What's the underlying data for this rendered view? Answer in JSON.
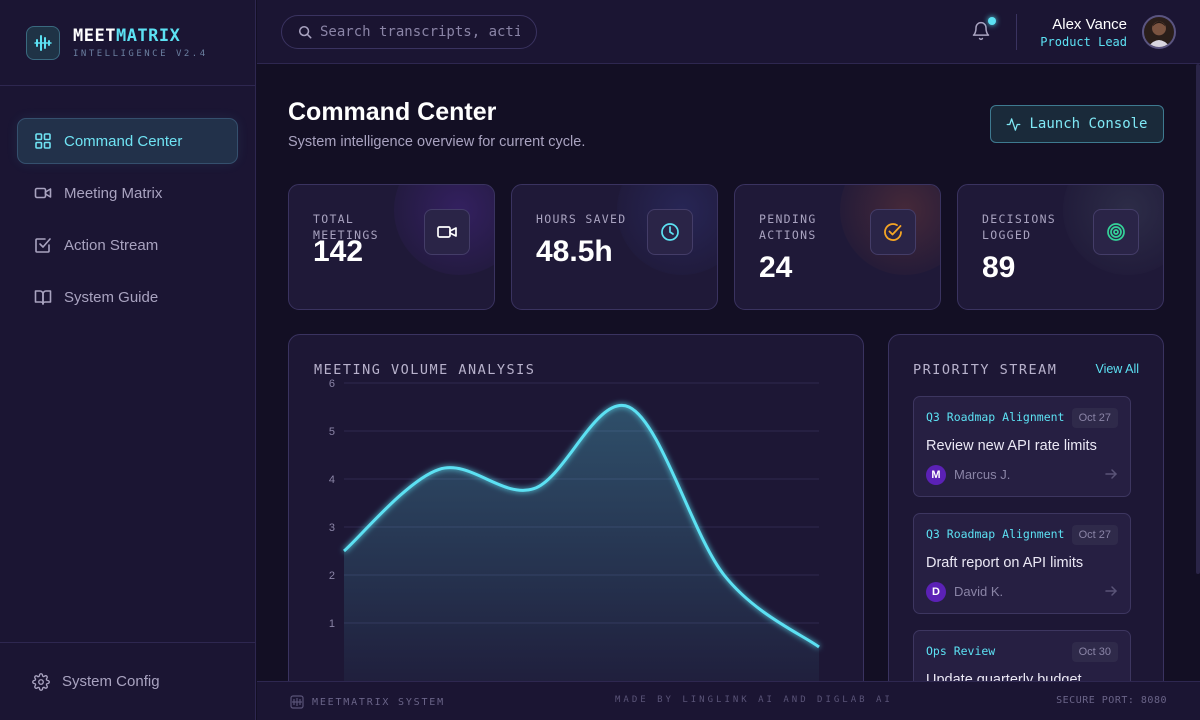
{
  "brand": {
    "name_part1": "MEET",
    "name_part2": "MATRIX",
    "subtitle": "INTELLIGENCE V2.4"
  },
  "sidebar": {
    "items": [
      {
        "label": "Command Center",
        "icon": "grid-icon",
        "active": true
      },
      {
        "label": "Meeting Matrix",
        "icon": "video-icon",
        "active": false
      },
      {
        "label": "Action Stream",
        "icon": "checkbox-icon",
        "active": false
      },
      {
        "label": "System Guide",
        "icon": "book-icon",
        "active": false
      }
    ],
    "footer_label": "System Config"
  },
  "topbar": {
    "search_placeholder": "Search transcripts, actions...",
    "user_name": "Alex Vance",
    "user_role": "Product Lead",
    "notification_dot": true
  },
  "header": {
    "title": "Command Center",
    "subtitle": "System intelligence overview for current cycle.",
    "launch_label": "Launch Console"
  },
  "stats": [
    {
      "label": "TOTAL MEETINGS",
      "value": "142",
      "icon": "video-icon",
      "accent": "#7c3aed"
    },
    {
      "label": "HOURS SAVED",
      "value": "48.5h",
      "icon": "clock-icon",
      "accent": "#5ce1f3"
    },
    {
      "label": "PENDING ACTIONS",
      "value": "24",
      "icon": "check-circle-icon",
      "accent": "#f5a524"
    },
    {
      "label": "DECISIONS LOGGED",
      "value": "89",
      "icon": "target-icon",
      "accent": "#34d399"
    }
  ],
  "chart_card": {
    "title": "MEETING VOLUME ANALYSIS"
  },
  "chart_data": {
    "type": "area",
    "title": "MEETING VOLUME ANALYSIS",
    "y_ticks": [
      1,
      2,
      3,
      4,
      5,
      6
    ],
    "x": [
      0,
      1,
      2,
      3,
      4,
      5
    ],
    "values": [
      2.5,
      4.2,
      3.8,
      5.5,
      2.0,
      0.5
    ],
    "color": "#5ce1f3",
    "grid": true
  },
  "priority": {
    "title": "PRIORITY STREAM",
    "view_all": "View All",
    "tasks": [
      {
        "tag": "Q3 Roadmap Alignment",
        "date": "Oct 27",
        "text": "Review new API rate limits",
        "initial": "M",
        "assignee": "Marcus J."
      },
      {
        "tag": "Q3 Roadmap Alignment",
        "date": "Oct 27",
        "text": "Draft report on API limits",
        "initial": "D",
        "assignee": "David K."
      },
      {
        "tag": "Ops Review",
        "date": "Oct 30",
        "text": "Update quarterly budget",
        "initial": "",
        "assignee": ""
      }
    ]
  },
  "footer": {
    "left": "MEETMATRIX SYSTEM",
    "middle": "MADE BY LINGLINK AI AND DIGLAB AI",
    "right": "SECURE PORT: 8080"
  },
  "colors": {
    "accent": "#5ce1f3",
    "background": "#130f24",
    "panel": "#1d1735"
  }
}
